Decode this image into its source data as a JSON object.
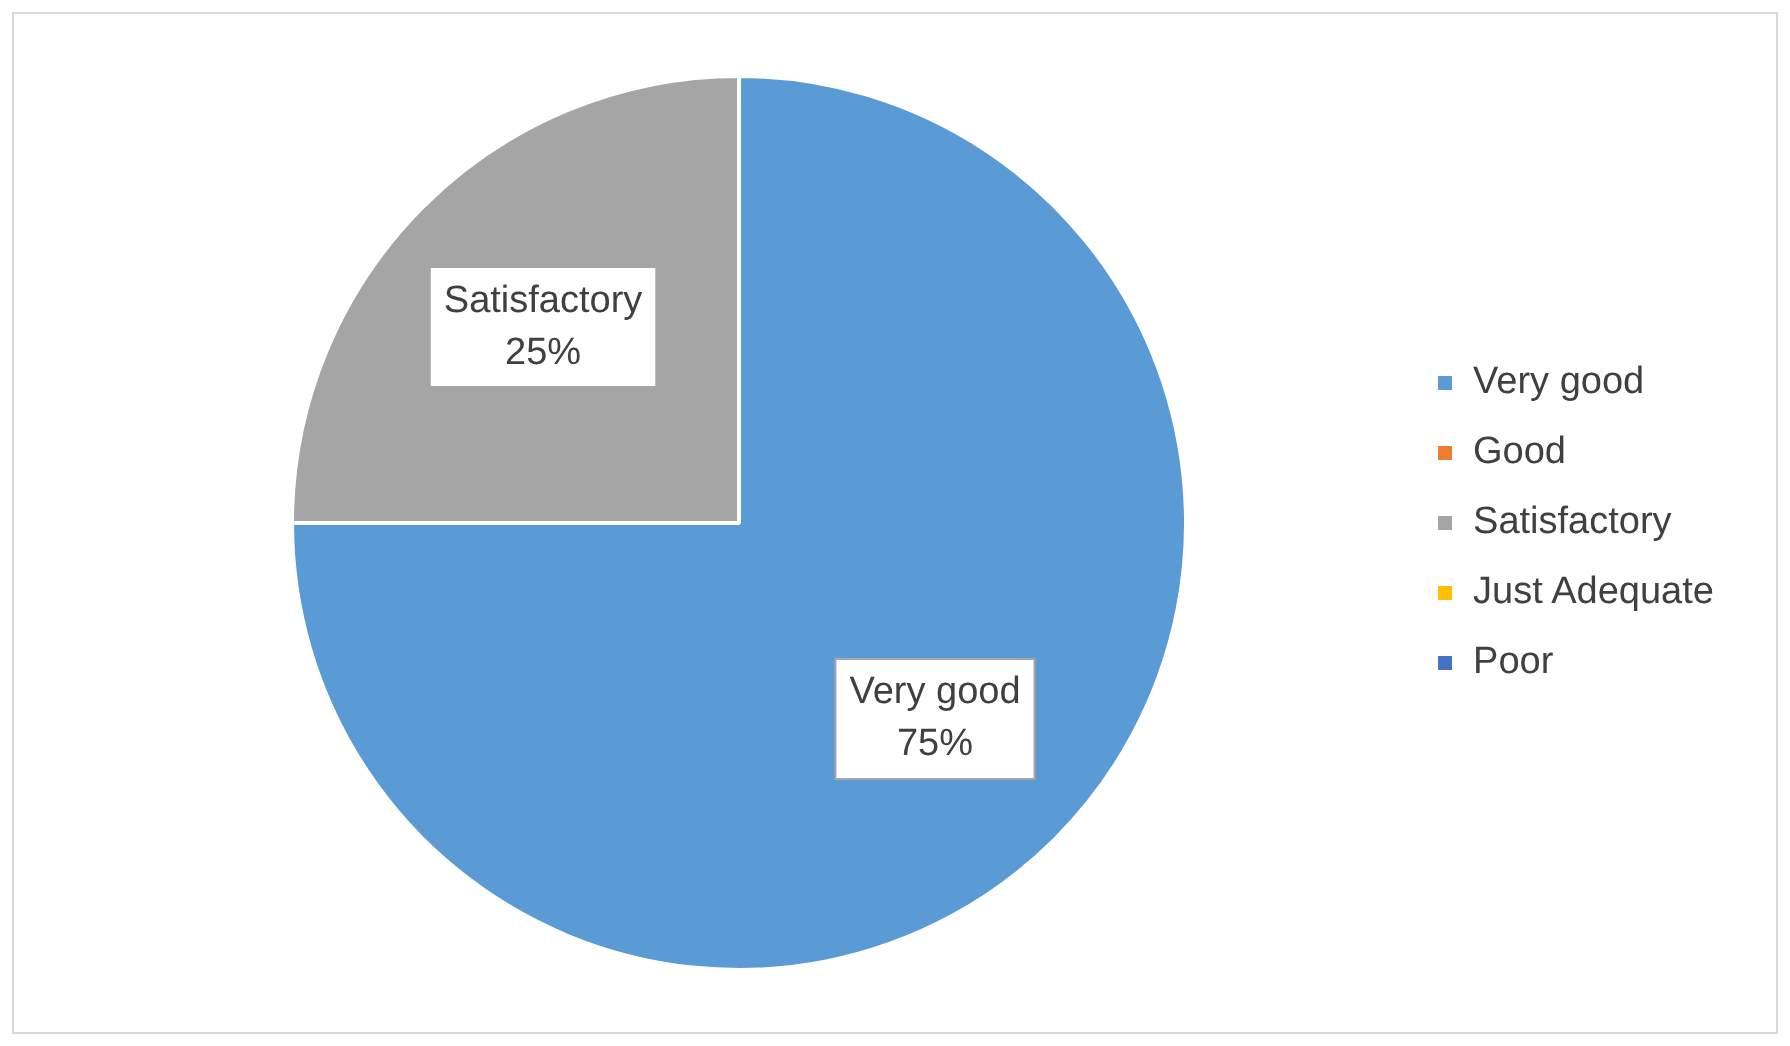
{
  "chart_data": {
    "type": "pie",
    "categories": [
      "Very good",
      "Good",
      "Satisfactory",
      "Just Adequate",
      "Poor"
    ],
    "values": [
      75,
      0,
      25,
      0,
      0
    ],
    "colors": [
      "#5b9bd5",
      "#ed7d31",
      "#a5a5a5",
      "#ffc000",
      "#4472c4"
    ],
    "value_labels": [
      "Very good\n75%",
      null,
      "Satisfactory\n25%",
      null,
      null
    ],
    "legend": "right"
  }
}
